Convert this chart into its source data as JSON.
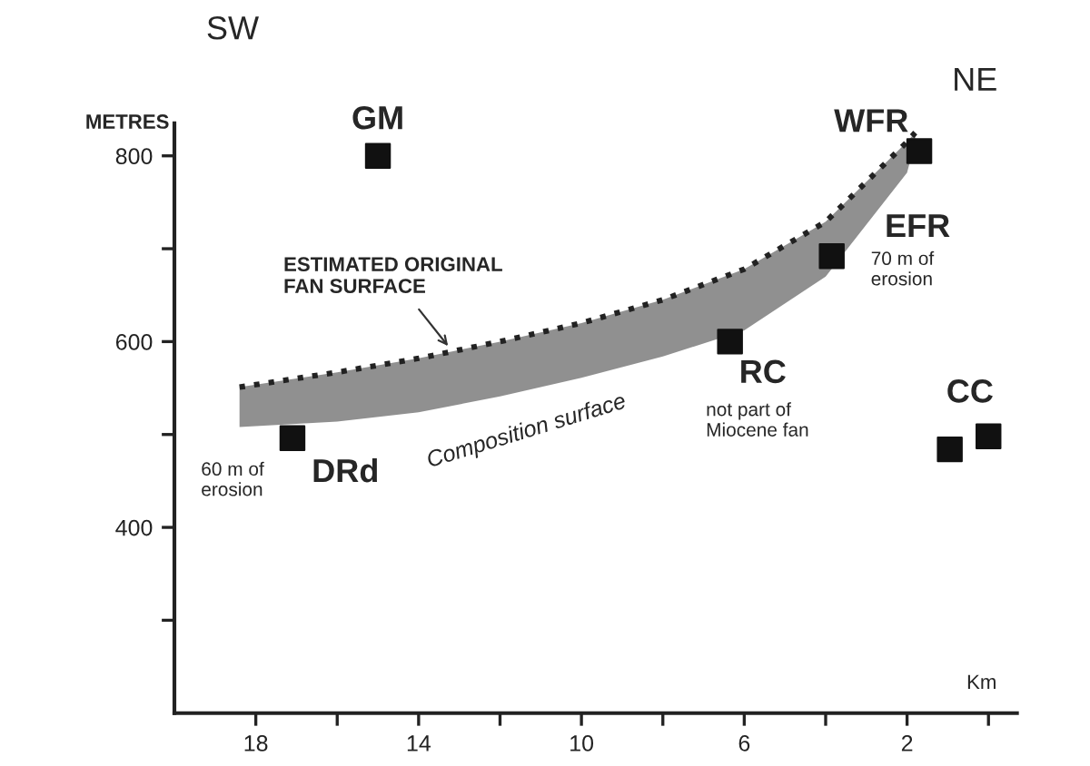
{
  "chart_data": {
    "type": "scatter",
    "xlabel": "Km",
    "ylabel": "METRES",
    "series": [
      {
        "color": "#111111",
        "marker": "square",
        "x": [
          15.0,
          1.7,
          3.85,
          6.35,
          17.1,
          0.95,
          0.0
        ],
        "values": [
          800,
          805,
          692,
          600,
          496,
          484,
          498
        ]
      },
      {
        "type": "line",
        "color": "#222222",
        "line_style": "dotted",
        "x": [
          18.4,
          16,
          14,
          12,
          10,
          8,
          6,
          4,
          2,
          1.8
        ],
        "values": [
          551,
          567,
          582,
          600,
          620,
          645,
          678,
          729,
          815,
          825
        ],
        "lower": [
          508,
          514,
          524,
          541,
          561,
          584,
          612,
          670,
          782,
          815
        ],
        "upper": [
          551,
          567,
          582,
          600,
          620,
          645,
          678,
          729,
          815,
          825
        ]
      }
    ],
    "xlim": [
      20,
      -0.7
    ],
    "ylim": [
      200,
      835
    ],
    "xticks": [
      18,
      {
        "value": 16,
        "label": null
      },
      14,
      {
        "value": 12,
        "label": null
      },
      10,
      {
        "value": 8,
        "label": null
      },
      6,
      {
        "value": 4,
        "label": null
      },
      2,
      {
        "value": 0,
        "label": null
      }
    ],
    "yticks": [
      {
        "value": 300,
        "label": null
      },
      400,
      {
        "value": 500,
        "label": null
      },
      600,
      {
        "value": 700,
        "label": null
      },
      800
    ],
    "grid": false,
    "legend": false,
    "annotations": [
      "SW",
      "NE",
      {
        "text": "GM",
        "x": 15.0,
        "y": 800
      },
      {
        "text": "WFR",
        "x": 1.7,
        "y": 805
      },
      {
        "text": "EFR",
        "x": 3.85,
        "y": 692
      },
      "70 m of\nerosion",
      {
        "text": "RC",
        "x": 6.35,
        "y": 600
      },
      "not part of\nMiocene fan",
      {
        "text": "CC",
        "x": 0.95,
        "y": 484
      },
      {
        "text": "DRd",
        "x": 17.1,
        "y": 496
      },
      "60 m of\nerosion",
      {
        "text": "ESTIMATED ORIGINAL\nFAN SURFACE",
        "x": 13.2,
        "y": 591
      },
      "Composition surface"
    ]
  }
}
